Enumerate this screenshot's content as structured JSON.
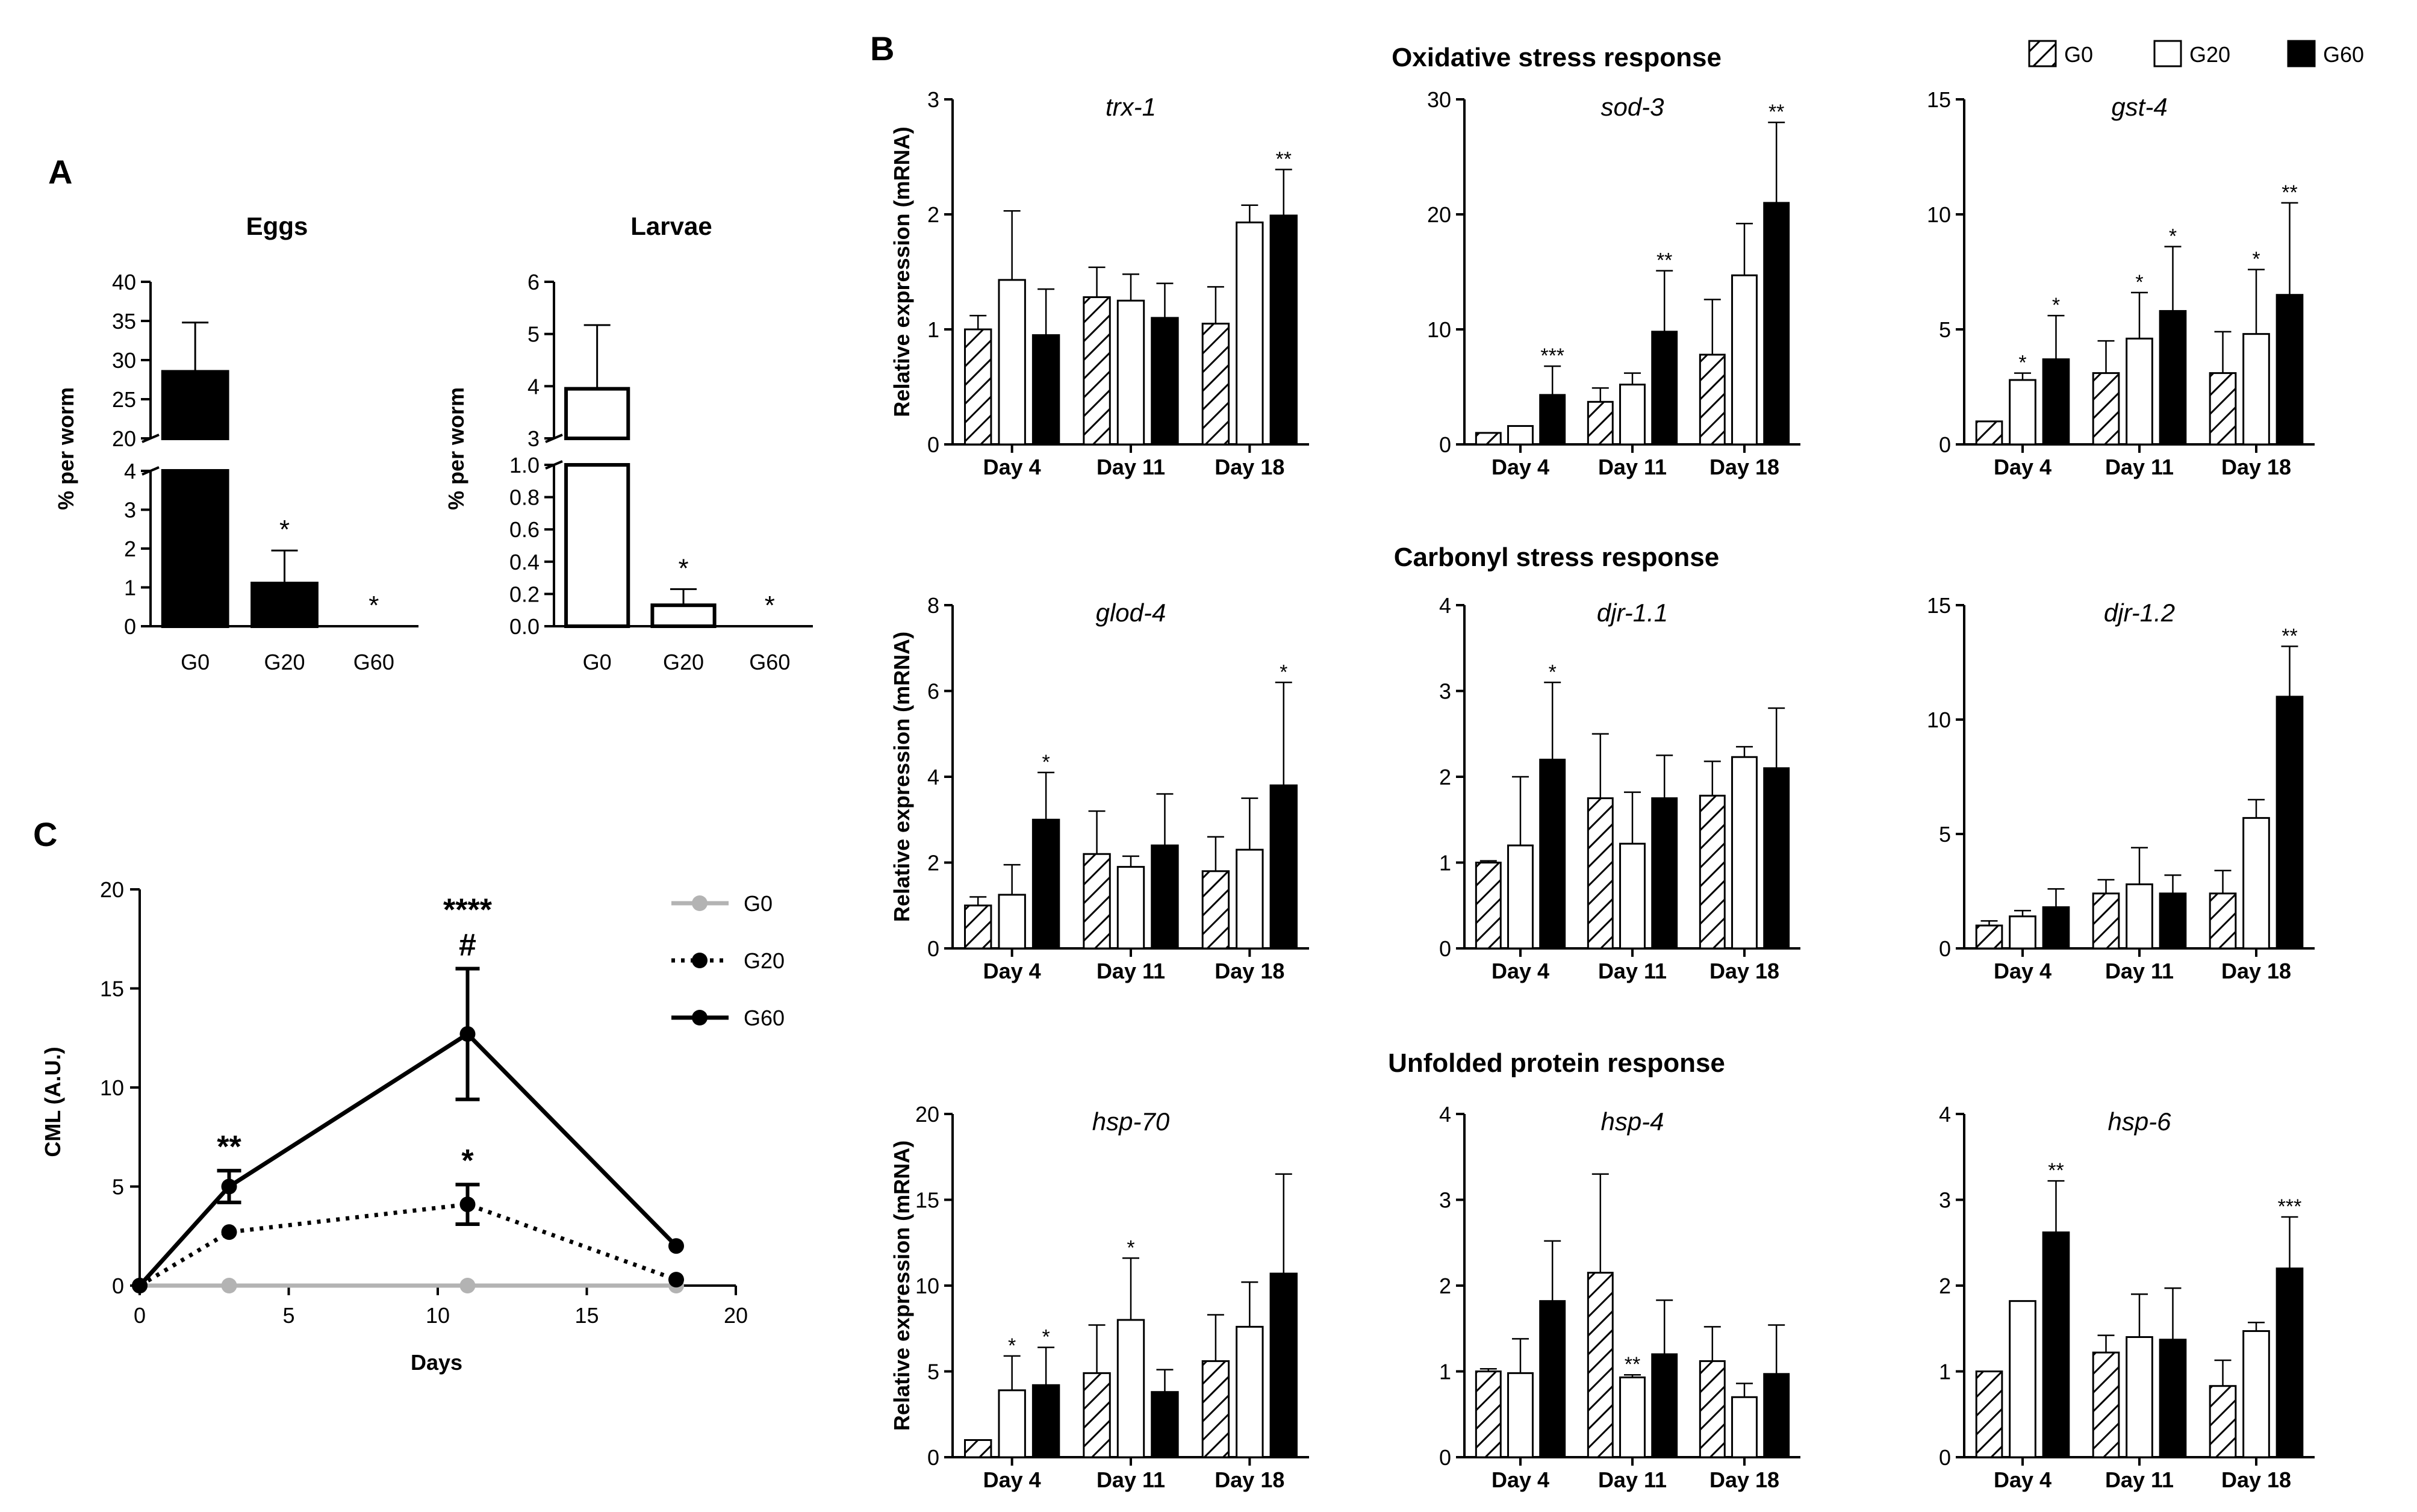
{
  "colors": {
    "G0": "#ffffff",
    "G20": "#ffffff",
    "G60": "#000000",
    "G0_line": "#b3b3b3",
    "axis": "#000000"
  },
  "panel_labels": {
    "A": "A",
    "B": "B",
    "C": "C"
  },
  "section_titles": [
    "Oxidative stress response",
    "Carbonyl stress response",
    "Unfolded protein response"
  ],
  "legend_B": [
    {
      "label": "G0",
      "pattern": "hatched"
    },
    {
      "label": "G20",
      "pattern": "open"
    },
    {
      "label": "G60",
      "pattern": "filled"
    }
  ],
  "chart_data": [
    {
      "id": "A-eggs",
      "type": "bar",
      "title": "Eggs",
      "ylabel": "% per worm",
      "categories": [
        "G0",
        "G20",
        "G60"
      ],
      "fill": "filled",
      "values": [
        28.5,
        1.1,
        0
      ],
      "errors": [
        6.3,
        0.85,
        0
      ],
      "annotations": [
        "",
        "*",
        "*"
      ],
      "broken_axis": {
        "lower": [
          0,
          4
        ],
        "upper": [
          20,
          40
        ],
        "lower_ticks": [
          "0",
          "1",
          "2",
          "3",
          "4"
        ],
        "upper_ticks": [
          "20",
          "25",
          "30",
          "35",
          "40"
        ]
      }
    },
    {
      "id": "A-larvae",
      "type": "bar",
      "title": "Larvae",
      "ylabel": "% per worm",
      "categories": [
        "G0",
        "G20",
        "G60"
      ],
      "fill": "open",
      "values": [
        3.95,
        0.13,
        0
      ],
      "errors": [
        1.22,
        0.1,
        0
      ],
      "annotations": [
        "",
        "*",
        "*"
      ],
      "broken_axis": {
        "lower": [
          0,
          1
        ],
        "upper": [
          3,
          6
        ],
        "lower_ticks": [
          "0.0",
          "0.2",
          "0.4",
          "0.6",
          "0.8",
          "1.0"
        ],
        "upper_ticks": [
          "3",
          "4",
          "5",
          "6"
        ]
      }
    },
    {
      "id": "C-cml",
      "type": "line",
      "ylabel": "CML (A.U.)",
      "xlabel": "Days",
      "xlim": [
        0,
        20
      ],
      "ylim": [
        0,
        20
      ],
      "xticks": [
        "0",
        "5",
        "10",
        "15",
        "20"
      ],
      "yticks": [
        "0",
        "5",
        "10",
        "15",
        "20"
      ],
      "series": [
        {
          "name": "G0",
          "style": "solid-grey",
          "x": [
            0,
            3,
            11,
            18
          ],
          "y": [
            0,
            0,
            0,
            0
          ],
          "err": [
            0,
            0,
            0,
            0
          ]
        },
        {
          "name": "G20",
          "style": "dotted",
          "x": [
            0,
            3,
            11,
            18
          ],
          "y": [
            0,
            2.7,
            4.1,
            0.3
          ],
          "err": [
            0,
            0,
            1.0,
            0
          ]
        },
        {
          "name": "G60",
          "style": "solid",
          "x": [
            0,
            3,
            11,
            18
          ],
          "y": [
            0,
            5.0,
            12.7,
            2.0
          ],
          "err": [
            0,
            0.8,
            3.3,
            0
          ]
        }
      ],
      "annotations": [
        {
          "x": 3,
          "y": 5.8,
          "text": "**",
          "row": 0
        },
        {
          "x": 11,
          "y": 16,
          "text": "****",
          "row": 1
        },
        {
          "x": 11,
          "y": 16,
          "text": "#",
          "row": 0
        },
        {
          "x": 11,
          "y": 5.1,
          "text": "*",
          "row": 0
        }
      ]
    },
    {
      "id": "B-trx-1",
      "type": "bar",
      "group": "B",
      "row": 0,
      "col": 0,
      "title": "trx-1",
      "ylim": [
        0,
        3
      ],
      "yticks": [
        "0",
        "1",
        "2",
        "3"
      ],
      "categories": [
        "Day 4",
        "Day 11",
        "Day 18"
      ],
      "series": [
        {
          "name": "G0",
          "values": [
            1.0,
            1.28,
            1.05
          ],
          "errors": [
            0.12,
            0.26,
            0.32
          ],
          "stars": [
            "",
            "",
            ""
          ]
        },
        {
          "name": "G20",
          "values": [
            1.43,
            1.25,
            1.93
          ],
          "errors": [
            0.6,
            0.23,
            0.15
          ],
          "stars": [
            "",
            "",
            ""
          ]
        },
        {
          "name": "G60",
          "values": [
            0.95,
            1.1,
            1.99
          ],
          "errors": [
            0.4,
            0.3,
            0.4
          ],
          "stars": [
            "",
            "",
            "**"
          ]
        }
      ]
    },
    {
      "id": "B-sod-3",
      "type": "bar",
      "group": "B",
      "row": 0,
      "col": 1,
      "title": "sod-3",
      "ylim": [
        0,
        30
      ],
      "yticks": [
        "0",
        "10",
        "20",
        "30"
      ],
      "categories": [
        "Day 4",
        "Day 11",
        "Day 18"
      ],
      "series": [
        {
          "name": "G0",
          "values": [
            1.0,
            3.7,
            7.8
          ],
          "errors": [
            0,
            1.2,
            4.8
          ],
          "stars": [
            "",
            "",
            ""
          ]
        },
        {
          "name": "G20",
          "values": [
            1.6,
            5.2,
            14.7
          ],
          "errors": [
            0,
            1.0,
            4.5
          ],
          "stars": [
            "",
            "",
            ""
          ]
        },
        {
          "name": "G60",
          "values": [
            4.3,
            9.8,
            21.0
          ],
          "errors": [
            2.5,
            5.3,
            7.0
          ],
          "stars": [
            "***",
            "**",
            "**"
          ]
        }
      ]
    },
    {
      "id": "B-gst-4",
      "type": "bar",
      "group": "B",
      "row": 0,
      "col": 2,
      "title": "gst-4",
      "ylim": [
        0,
        15
      ],
      "yticks": [
        "0",
        "5",
        "10",
        "15"
      ],
      "categories": [
        "Day 4",
        "Day 11",
        "Day 18"
      ],
      "series": [
        {
          "name": "G0",
          "values": [
            1.0,
            3.1,
            3.1
          ],
          "errors": [
            0,
            1.4,
            1.8
          ],
          "stars": [
            "",
            "",
            ""
          ]
        },
        {
          "name": "G20",
          "values": [
            2.8,
            4.6,
            4.8
          ],
          "errors": [
            0.3,
            2.0,
            2.8
          ],
          "stars": [
            "*",
            "*",
            "*"
          ]
        },
        {
          "name": "G60",
          "values": [
            3.7,
            5.8,
            6.5
          ],
          "errors": [
            1.9,
            2.8,
            4.0
          ],
          "stars": [
            "*",
            "*",
            "**"
          ]
        }
      ]
    },
    {
      "id": "B-glod-4",
      "type": "bar",
      "group": "B",
      "row": 1,
      "col": 0,
      "title": "glod-4",
      "ylim": [
        0,
        8
      ],
      "yticks": [
        "0",
        "2",
        "4",
        "6",
        "8"
      ],
      "categories": [
        "Day 4",
        "Day 11",
        "Day 18"
      ],
      "series": [
        {
          "name": "G0",
          "values": [
            1.0,
            2.2,
            1.8
          ],
          "errors": [
            0.2,
            1.0,
            0.8
          ],
          "stars": [
            "",
            "",
            ""
          ]
        },
        {
          "name": "G20",
          "values": [
            1.25,
            1.9,
            2.3
          ],
          "errors": [
            0.7,
            0.25,
            1.2
          ],
          "stars": [
            "",
            "",
            ""
          ]
        },
        {
          "name": "G60",
          "values": [
            3.0,
            2.4,
            3.8
          ],
          "errors": [
            1.1,
            1.2,
            2.4
          ],
          "stars": [
            "*",
            "",
            "*"
          ]
        }
      ]
    },
    {
      "id": "B-djr-1.1",
      "type": "bar",
      "group": "B",
      "row": 1,
      "col": 1,
      "title": "djr-1.1",
      "ylim": [
        0,
        4
      ],
      "yticks": [
        "0",
        "1",
        "2",
        "3",
        "4"
      ],
      "categories": [
        "Day 4",
        "Day 11",
        "Day 18"
      ],
      "series": [
        {
          "name": "G0",
          "values": [
            1.0,
            1.75,
            1.78
          ],
          "errors": [
            0.02,
            0.75,
            0.4
          ],
          "stars": [
            "",
            "",
            ""
          ]
        },
        {
          "name": "G20",
          "values": [
            1.2,
            1.22,
            2.23
          ],
          "errors": [
            0.8,
            0.6,
            0.12
          ],
          "stars": [
            "",
            "",
            ""
          ]
        },
        {
          "name": "G60",
          "values": [
            2.2,
            1.75,
            2.1
          ],
          "errors": [
            0.9,
            0.5,
            0.7
          ],
          "stars": [
            "*",
            "",
            ""
          ]
        }
      ]
    },
    {
      "id": "B-djr-1.2",
      "type": "bar",
      "group": "B",
      "row": 1,
      "col": 2,
      "title": "djr-1.2",
      "ylim": [
        0,
        15
      ],
      "yticks": [
        "0",
        "5",
        "10",
        "15"
      ],
      "categories": [
        "Day 4",
        "Day 11",
        "Day 18"
      ],
      "series": [
        {
          "name": "G0",
          "values": [
            1.0,
            2.4,
            2.4
          ],
          "errors": [
            0.2,
            0.6,
            1.0
          ],
          "stars": [
            "",
            "",
            ""
          ]
        },
        {
          "name": "G20",
          "values": [
            1.4,
            2.8,
            5.7
          ],
          "errors": [
            0.25,
            1.6,
            0.8
          ],
          "stars": [
            "",
            "",
            ""
          ]
        },
        {
          "name": "G60",
          "values": [
            1.8,
            2.4,
            11.0
          ],
          "errors": [
            0.8,
            0.8,
            2.2
          ],
          "stars": [
            "",
            "",
            "**"
          ]
        }
      ]
    },
    {
      "id": "B-hsp-70",
      "type": "bar",
      "group": "B",
      "row": 2,
      "col": 0,
      "title": "hsp-70",
      "ylim": [
        0,
        20
      ],
      "yticks": [
        "0",
        "5",
        "10",
        "15",
        "20"
      ],
      "categories": [
        "Day 4",
        "Day 11",
        "Day 18"
      ],
      "series": [
        {
          "name": "G0",
          "values": [
            1.0,
            4.9,
            5.6
          ],
          "errors": [
            0,
            2.8,
            2.7
          ],
          "stars": [
            "",
            "",
            ""
          ]
        },
        {
          "name": "G20",
          "values": [
            3.9,
            8.0,
            7.6
          ],
          "errors": [
            2.0,
            3.6,
            2.6
          ],
          "stars": [
            "*",
            "*",
            ""
          ]
        },
        {
          "name": "G60",
          "values": [
            4.2,
            3.8,
            10.7
          ],
          "errors": [
            2.2,
            1.3,
            5.8
          ],
          "stars": [
            "*",
            "",
            ""
          ]
        }
      ]
    },
    {
      "id": "B-hsp-4",
      "type": "bar",
      "group": "B",
      "row": 2,
      "col": 1,
      "title": "hsp-4",
      "ylim": [
        0,
        4
      ],
      "yticks": [
        "0",
        "1",
        "2",
        "3",
        "4"
      ],
      "categories": [
        "Day 4",
        "Day 11",
        "Day 18"
      ],
      "series": [
        {
          "name": "G0",
          "values": [
            1.0,
            2.15,
            1.12
          ],
          "errors": [
            0.03,
            1.15,
            0.4
          ],
          "stars": [
            "",
            "",
            ""
          ]
        },
        {
          "name": "G20",
          "values": [
            0.98,
            0.93,
            0.7
          ],
          "errors": [
            0.4,
            0.03,
            0.16
          ],
          "stars": [
            "",
            "**",
            ""
          ]
        },
        {
          "name": "G60",
          "values": [
            1.82,
            1.2,
            0.97
          ],
          "errors": [
            0.7,
            0.63,
            0.57
          ],
          "stars": [
            "",
            "",
            ""
          ]
        }
      ]
    },
    {
      "id": "B-hsp-6",
      "type": "bar",
      "group": "B",
      "row": 2,
      "col": 2,
      "title": "hsp-6",
      "ylim": [
        0,
        4
      ],
      "yticks": [
        "0",
        "1",
        "2",
        "3",
        "4"
      ],
      "categories": [
        "Day 4",
        "Day 11",
        "Day 18"
      ],
      "series": [
        {
          "name": "G0",
          "values": [
            1.0,
            1.22,
            0.83
          ],
          "errors": [
            0,
            0.2,
            0.3
          ],
          "stars": [
            "",
            "",
            ""
          ]
        },
        {
          "name": "G20",
          "values": [
            1.82,
            1.4,
            1.47
          ],
          "errors": [
            0,
            0.5,
            0.1
          ],
          "stars": [
            "",
            "",
            ""
          ]
        },
        {
          "name": "G60",
          "values": [
            2.62,
            1.37,
            2.2
          ],
          "errors": [
            0.6,
            0.6,
            0.6
          ],
          "stars": [
            "**",
            "",
            "***"
          ]
        }
      ]
    }
  ],
  "ylabel_B": "Relative expression (mRNA)"
}
